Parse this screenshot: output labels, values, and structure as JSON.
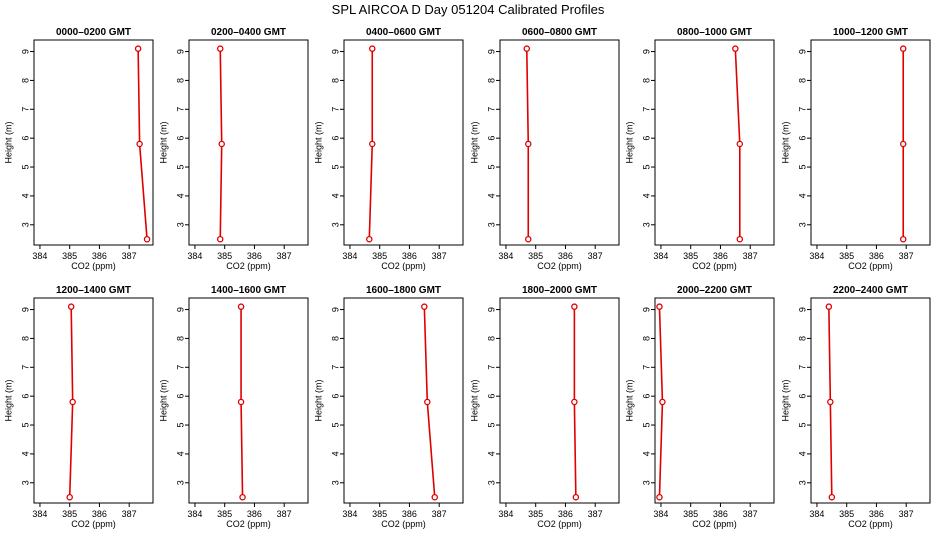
{
  "title": "SPL AIRCOA D  Day 051204  Calibrated Profiles",
  "colors": {
    "profile": "#e00000",
    "axis": "#000000"
  },
  "chart_data": {
    "type": "line",
    "layout": "small-multiples 2x6",
    "xlabel": "CO2 (ppm)",
    "ylabel": "Height (m)",
    "xlim": [
      383.8,
      387.8
    ],
    "ylim": [
      2.3,
      9.4
    ],
    "xticks": [
      384,
      385,
      386,
      387
    ],
    "yticks": [
      3,
      4,
      5,
      6,
      7,
      8,
      9
    ],
    "heights": [
      2.5,
      5.8,
      9.1
    ],
    "panels": [
      {
        "title": "0000–0200 GMT",
        "co2": [
          387.6,
          387.35,
          387.3
        ]
      },
      {
        "title": "0200–0400 GMT",
        "co2": [
          384.85,
          384.9,
          384.85
        ]
      },
      {
        "title": "0400–0600 GMT",
        "co2": [
          384.65,
          384.75,
          384.75
        ]
      },
      {
        "title": "0600–0800 GMT",
        "co2": [
          384.75,
          384.75,
          384.7
        ]
      },
      {
        "title": "0800–1000 GMT",
        "co2": [
          386.65,
          386.65,
          386.5
        ]
      },
      {
        "title": "1000–1200 GMT",
        "co2": [
          386.9,
          386.9,
          386.9
        ]
      },
      {
        "title": "1200–1400 GMT",
        "co2": [
          385.0,
          385.1,
          385.05
        ]
      },
      {
        "title": "1400–1600 GMT",
        "co2": [
          385.6,
          385.55,
          385.55
        ]
      },
      {
        "title": "1600–1800 GMT",
        "co2": [
          386.85,
          386.6,
          386.5
        ]
      },
      {
        "title": "1800–2000 GMT",
        "co2": [
          386.35,
          386.3,
          386.3
        ]
      },
      {
        "title": "2000–2200 GMT",
        "co2": [
          383.95,
          384.05,
          383.95
        ]
      },
      {
        "title": "2200–2400 GMT",
        "co2": [
          384.5,
          384.45,
          384.4
        ]
      }
    ]
  }
}
